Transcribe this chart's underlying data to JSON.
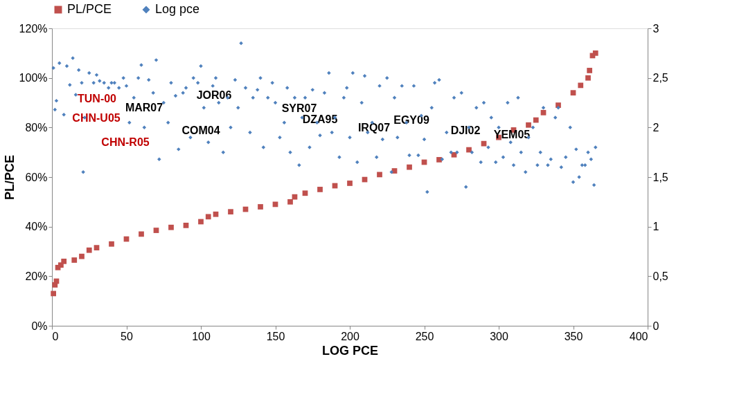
{
  "chart_data": {
    "type": "scatter",
    "xlabel": "LOG PCE",
    "ylabel": "PL/PCE",
    "xlim": [
      0,
      400
    ],
    "xticks": [
      0,
      50,
      100,
      150,
      200,
      250,
      300,
      350,
      400
    ],
    "ylim": [
      0,
      120
    ],
    "yticks": [
      {
        "value": 0,
        "label": "0%"
      },
      {
        "value": 20,
        "label": "20%"
      },
      {
        "value": 40,
        "label": "40%"
      },
      {
        "value": 60,
        "label": "60%"
      },
      {
        "value": 80,
        "label": "80%"
      },
      {
        "value": 100,
        "label": "100%"
      },
      {
        "value": 120,
        "label": "120%"
      }
    ],
    "y2lim": [
      0,
      3
    ],
    "y2ticks": [
      0,
      {
        "value": 0.5,
        "label": "0,5"
      },
      1,
      {
        "value": 1.5,
        "label": "1,5"
      },
      2,
      {
        "value": 2.5,
        "label": "2,5"
      },
      3
    ],
    "grid": false,
    "legend": "top",
    "series": [
      {
        "name": "PL/PCE",
        "color": "#c0504d",
        "marker": "square",
        "x": [
          1,
          2,
          3,
          4,
          6,
          8,
          15,
          20,
          25,
          30,
          40,
          50,
          60,
          70,
          80,
          90,
          100,
          105,
          110,
          120,
          130,
          140,
          150,
          160,
          163,
          170,
          180,
          190,
          200,
          210,
          220,
          230,
          240,
          250,
          260,
          270,
          280,
          290,
          300,
          310,
          320,
          325,
          330,
          340,
          350,
          355,
          360,
          361,
          363,
          365
        ],
        "values": [
          13,
          16.5,
          18,
          23.5,
          24.5,
          26,
          26.5,
          28,
          30.5,
          31.5,
          33,
          35,
          37,
          38.5,
          39.7,
          40.5,
          42,
          44,
          45,
          46,
          47,
          48,
          49,
          50,
          52,
          53.5,
          55,
          56.5,
          57.5,
          59,
          61,
          62.5,
          64,
          66,
          67,
          69,
          71,
          73.5,
          76,
          79,
          81,
          83,
          86,
          89,
          94,
          97,
          100,
          103,
          109,
          110
        ]
      },
      {
        "name": "Log pce",
        "color": "#4f81bd",
        "marker": "diamond",
        "axis": "y2",
        "x": [
          1,
          2,
          3,
          5,
          8,
          10,
          12,
          14,
          16,
          18,
          20,
          21,
          22,
          25,
          28,
          30,
          32,
          35,
          38,
          40,
          42,
          45,
          48,
          50,
          52,
          55,
          58,
          60,
          62,
          65,
          68,
          70,
          72,
          75,
          78,
          80,
          83,
          85,
          88,
          90,
          93,
          95,
          98,
          100,
          102,
          105,
          108,
          110,
          112,
          115,
          118,
          120,
          123,
          125,
          127,
          130,
          133,
          135,
          138,
          140,
          142,
          145,
          148,
          150,
          153,
          156,
          158,
          160,
          163,
          166,
          168,
          170,
          173,
          175,
          178,
          180,
          183,
          186,
          188,
          190,
          193,
          196,
          198,
          200,
          202,
          205,
          208,
          210,
          212,
          215,
          218,
          220,
          222,
          225,
          228,
          230,
          232,
          235,
          238,
          240,
          243,
          246,
          248,
          250,
          252,
          255,
          257,
          260,
          262,
          265,
          268,
          270,
          272,
          275,
          278,
          280,
          282,
          285,
          288,
          290,
          293,
          295,
          298,
          300,
          303,
          306,
          308,
          310,
          313,
          315,
          318,
          320,
          323,
          326,
          328,
          330,
          333,
          335,
          338,
          340,
          342,
          345,
          348,
          350,
          352,
          354,
          356,
          358,
          360,
          362,
          364,
          365
        ],
        "values": [
          2.6,
          2.18,
          2.27,
          2.65,
          2.13,
          2.62,
          2.43,
          2.7,
          2.33,
          2.58,
          2.45,
          1.55,
          2.1,
          2.55,
          2.45,
          2.53,
          2.47,
          2.45,
          2.4,
          2.45,
          2.45,
          2.4,
          2.5,
          2.42,
          2.05,
          2.3,
          2.5,
          2.63,
          2.0,
          2.48,
          2.35,
          2.68,
          1.68,
          2.25,
          2.05,
          2.45,
          2.32,
          1.78,
          2.35,
          2.4,
          1.9,
          2.5,
          2.45,
          2.62,
          2.2,
          1.85,
          2.42,
          2.5,
          2.25,
          1.75,
          2.3,
          2.0,
          2.48,
          2.2,
          2.85,
          2.4,
          1.95,
          2.3,
          2.38,
          2.5,
          1.8,
          2.3,
          2.45,
          2.25,
          1.9,
          2.05,
          2.4,
          1.75,
          2.3,
          1.62,
          2.1,
          2.3,
          1.8,
          2.38,
          2.05,
          1.92,
          2.35,
          2.55,
          1.95,
          2.1,
          1.7,
          2.3,
          2.4,
          1.9,
          2.55,
          1.65,
          2.25,
          2.52,
          1.95,
          2.05,
          1.7,
          2.42,
          1.88,
          2.5,
          1.55,
          2.3,
          1.9,
          2.42,
          2.05,
          1.72,
          2.42,
          1.72,
          2.12,
          1.88,
          1.35,
          2.2,
          2.45,
          2.48,
          1.68,
          1.95,
          1.75,
          2.3,
          1.75,
          2.35,
          1.4,
          2.0,
          1.75,
          2.2,
          1.65,
          2.25,
          1.8,
          2.1,
          1.65,
          2.0,
          1.7,
          2.25,
          1.85,
          1.62,
          2.3,
          1.75,
          1.55,
          1.9,
          2.0,
          1.62,
          1.75,
          2.2,
          1.62,
          1.68,
          2.1,
          2.2,
          1.6,
          1.7,
          2.0,
          1.45,
          1.78,
          1.5,
          1.62,
          1.62,
          1.75,
          1.68,
          1.42,
          1.8
        ]
      }
    ],
    "annotations": [
      "TUN-00",
      "CHN-U05",
      "CHN-R05",
      "MAR07",
      "JOR06",
      "COM04",
      "SYR07",
      "DZA95",
      "IRQ07",
      "EGY09",
      "DJI02",
      "YEM05"
    ]
  }
}
